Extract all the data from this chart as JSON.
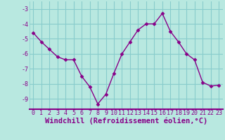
{
  "x": [
    0,
    1,
    2,
    3,
    4,
    5,
    6,
    7,
    8,
    9,
    10,
    11,
    12,
    13,
    14,
    15,
    16,
    17,
    18,
    19,
    20,
    21,
    22,
    23
  ],
  "y": [
    -4.6,
    -5.2,
    -5.7,
    -6.2,
    -6.4,
    -6.4,
    -7.5,
    -8.2,
    -9.35,
    -8.7,
    -7.3,
    -6.0,
    -5.2,
    -4.4,
    -4.0,
    -4.0,
    -3.3,
    -4.5,
    -5.2,
    -6.0,
    -6.4,
    -7.9,
    -8.15,
    -8.1
  ],
  "line_color": "#880088",
  "marker": "D",
  "marker_size": 2.5,
  "linewidth": 1.0,
  "bg_color": "#b8e8e0",
  "grid_color": "#88cccc",
  "spine_color": "#880088",
  "xlabel": "Windchill (Refroidissement éolien,°C)",
  "xlabel_fontsize": 7.5,
  "tick_fontsize": 6,
  "ylabel_ticks": [
    -3,
    -4,
    -5,
    -6,
    -7,
    -8,
    -9
  ],
  "xlim": [
    -0.5,
    23.5
  ],
  "ylim": [
    -9.7,
    -2.5
  ]
}
